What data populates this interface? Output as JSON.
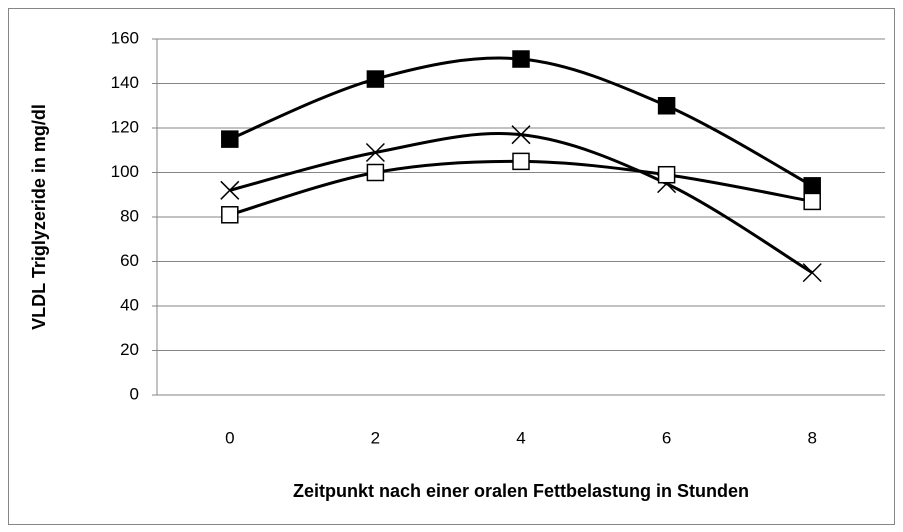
{
  "chart_data": {
    "type": "line",
    "x_label": "Zeitpunkt nach einer oralen Fettbelastung in Stunden",
    "y_label": "VLDL Triglyzeride in mg/dl",
    "x": [
      0,
      2,
      4,
      6,
      8
    ],
    "xlim": [
      -1,
      9
    ],
    "xticks": [
      0,
      2,
      4,
      6,
      8
    ],
    "ylim": [
      0,
      160
    ],
    "yticks": [
      0,
      20,
      40,
      60,
      80,
      100,
      120,
      140,
      160
    ],
    "grid": true,
    "smooth": true,
    "series": [
      {
        "color": "#000000",
        "marker": "filled-square",
        "values": [
          115,
          142,
          151,
          130,
          94
        ]
      },
      {
        "color": "#000000",
        "marker": "x",
        "values": [
          92,
          109,
          117,
          95,
          55
        ]
      },
      {
        "color": "#000000",
        "marker": "open-square",
        "values": [
          81,
          100,
          105,
          99,
          87
        ]
      }
    ]
  }
}
